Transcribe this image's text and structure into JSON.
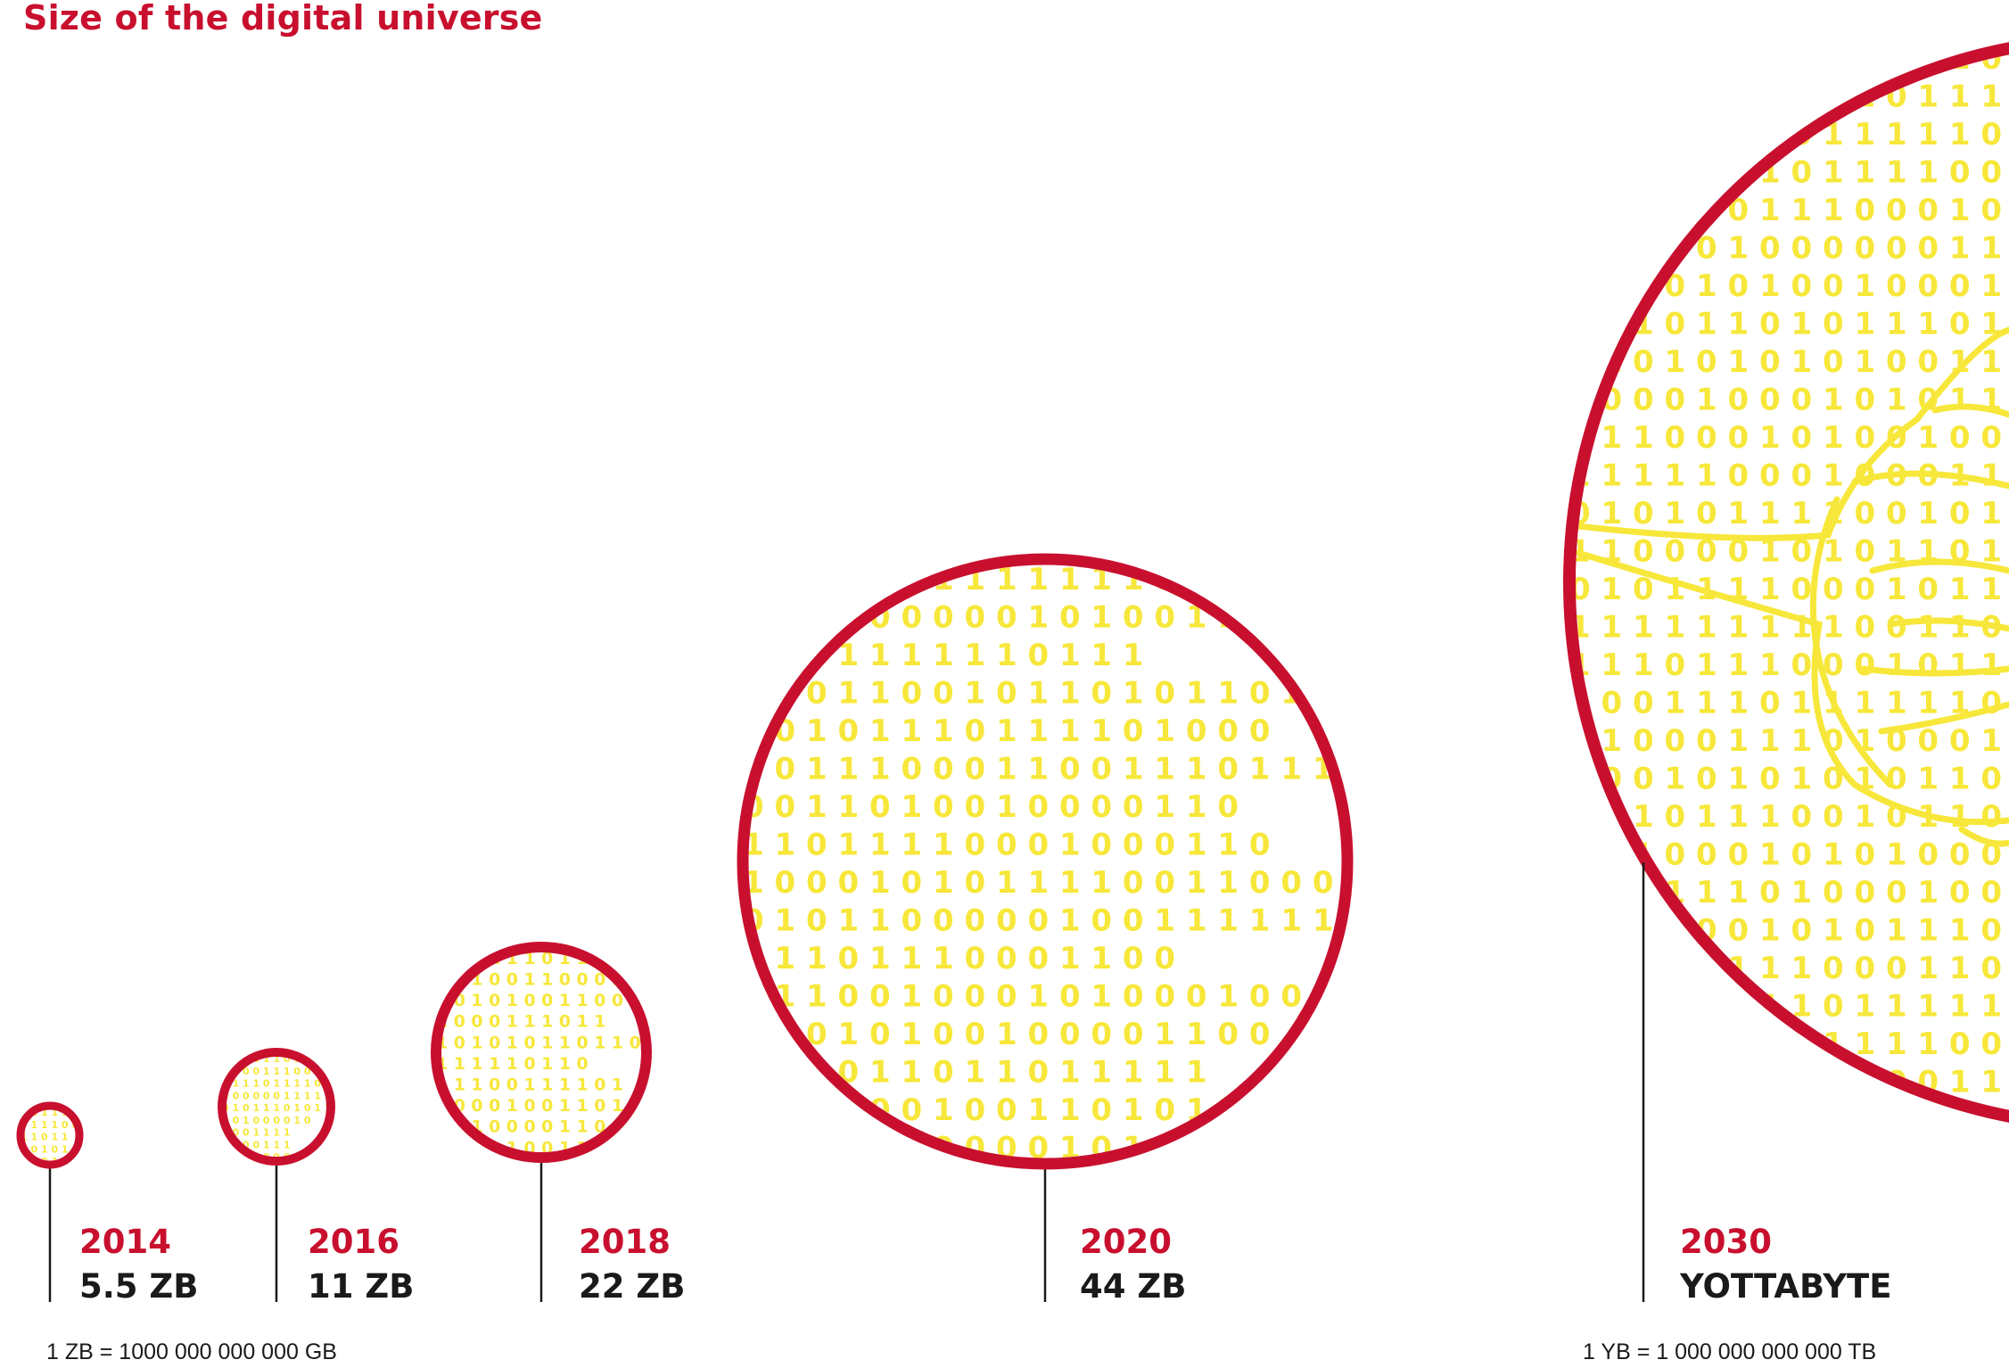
{
  "chart_data": {
    "type": "bubble",
    "title": "Size of the digital universe",
    "bubbles": [
      {
        "year": "2014",
        "label": "5.5 ZB",
        "value_zb": 5.5
      },
      {
        "year": "2016",
        "label": "11 ZB",
        "value_zb": 11
      },
      {
        "year": "2018",
        "label": "22 ZB",
        "value_zb": 22
      },
      {
        "year": "2020",
        "label": "44 ZB",
        "value_zb": 44
      },
      {
        "year": "2030",
        "label": "YOTTABYTE",
        "value_zb": 1000
      }
    ],
    "footnotes": {
      "left": "1 ZB = 1000 000 000 000 GB",
      "right": "1 YB = 1 000 000 000 000 TB"
    }
  },
  "colors": {
    "ring": "#c8102e",
    "digits": "#f7e73a",
    "stem": "#1a1a1a",
    "year_text": "#c8102e",
    "value_text": "#1a1a1a"
  }
}
